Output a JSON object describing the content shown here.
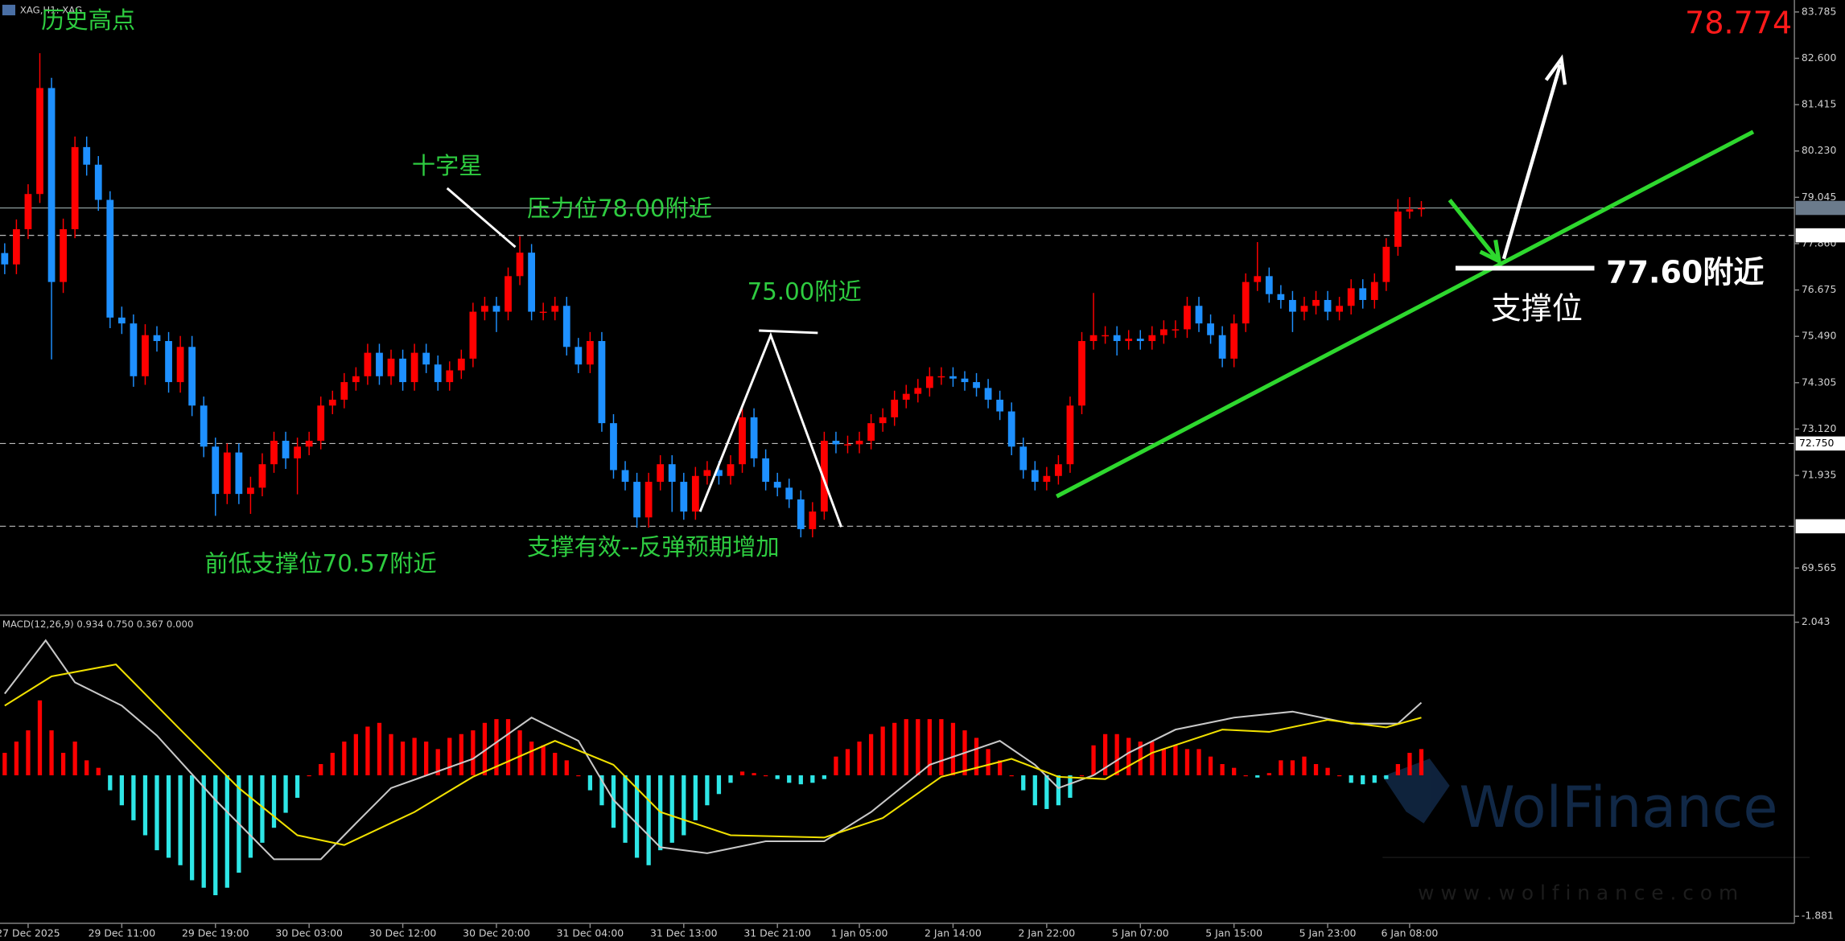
{
  "chart_data": [
    {
      "type": "candlestick",
      "title": "XAG,H1: XAG",
      "current_price": 78.774,
      "up_color": "#ff0000",
      "down_color": "#1e90ff",
      "open": [
        77.62,
        77.33,
        78.23,
        79.13,
        81.84,
        76.88,
        78.23,
        80.33,
        79.88,
        78.98,
        75.97,
        75.82,
        74.47,
        75.52,
        75.37,
        74.32,
        75.22,
        73.72,
        72.67,
        71.46,
        72.52,
        71.46,
        71.62,
        72.22,
        72.82,
        72.37,
        72.67,
        72.82,
        73.72,
        73.87,
        74.32,
        74.47,
        75.07,
        74.47,
        74.92,
        74.32,
        75.07,
        74.77,
        74.32,
        74.62,
        74.92,
        76.12,
        76.27,
        76.12,
        77.03,
        77.63,
        76.12,
        76.12,
        76.27,
        75.22,
        74.77,
        75.37,
        73.27,
        72.07,
        71.77,
        70.86,
        71.77,
        72.22,
        71.77,
        71.01,
        71.92,
        72.07,
        71.92,
        72.22,
        73.42,
        72.37,
        71.77,
        71.62,
        71.32,
        70.56,
        71.01,
        72.82,
        72.73,
        72.73,
        72.82,
        73.27,
        73.42,
        73.87,
        74.02,
        74.17,
        74.47,
        74.47,
        74.41,
        74.32,
        74.17,
        73.87,
        73.57,
        72.67,
        72.07,
        71.77,
        71.92,
        72.22,
        73.72,
        75.37,
        75.52,
        75.52,
        75.37,
        75.43,
        75.37,
        75.52,
        75.67,
        75.67,
        76.27,
        75.82,
        75.52,
        74.92,
        75.82,
        76.88,
        77.03,
        76.57,
        76.42,
        76.12,
        76.27,
        76.42,
        76.12,
        76.27,
        76.72,
        76.42,
        76.88,
        77.78,
        78.68,
        78.74
      ],
      "high": [
        77.87,
        78.48,
        79.38,
        82.73,
        82.1,
        78.5,
        80.6,
        80.6,
        80.1,
        79.2,
        76.25,
        76.05,
        75.8,
        75.75,
        75.6,
        75.5,
        75.5,
        73.95,
        72.9,
        72.75,
        72.75,
        71.9,
        72.5,
        73.05,
        73.05,
        72.9,
        73.05,
        73.95,
        74.1,
        74.55,
        74.7,
        75.3,
        75.3,
        75.15,
        75.15,
        75.3,
        75.3,
        75.0,
        74.85,
        75.15,
        76.35,
        76.5,
        76.5,
        77.25,
        78.05,
        77.85,
        76.35,
        76.5,
        76.5,
        75.45,
        75.6,
        75.6,
        73.5,
        72.3,
        72.0,
        72.0,
        72.45,
        72.45,
        72.0,
        72.15,
        72.3,
        72.3,
        72.45,
        73.65,
        73.65,
        72.6,
        72.0,
        71.85,
        71.55,
        71.25,
        73.05,
        73.05,
        72.95,
        73.05,
        73.5,
        73.65,
        74.1,
        74.25,
        74.4,
        74.7,
        74.7,
        74.7,
        74.6,
        74.55,
        74.4,
        74.1,
        73.8,
        72.9,
        72.3,
        72.15,
        72.45,
        73.95,
        75.6,
        76.6,
        75.75,
        75.75,
        75.65,
        75.65,
        75.75,
        75.9,
        75.9,
        76.5,
        76.5,
        76.05,
        75.75,
        76.05,
        77.1,
        77.9,
        77.25,
        76.8,
        76.65,
        76.5,
        76.65,
        76.65,
        76.5,
        76.95,
        76.95,
        77.1,
        78.0,
        79.0,
        79.05,
        78.95
      ],
      "low": [
        77.08,
        77.08,
        77.98,
        78.9,
        74.9,
        76.6,
        78.0,
        79.6,
        78.7,
        75.7,
        75.55,
        74.2,
        74.25,
        75.1,
        74.05,
        74.05,
        73.45,
        72.4,
        70.9,
        71.2,
        71.2,
        70.95,
        71.4,
        72.0,
        72.1,
        71.45,
        72.45,
        72.6,
        73.5,
        73.65,
        74.1,
        74.25,
        74.25,
        74.25,
        74.1,
        74.1,
        74.55,
        74.1,
        74.1,
        74.4,
        74.7,
        75.9,
        75.6,
        75.9,
        76.8,
        75.9,
        75.9,
        75.9,
        75.0,
        74.55,
        74.55,
        73.05,
        71.85,
        71.55,
        70.6,
        70.6,
        71.55,
        71.0,
        70.8,
        70.8,
        71.7,
        71.7,
        71.7,
        72.0,
        72.15,
        71.55,
        71.4,
        71.1,
        70.35,
        70.35,
        70.8,
        72.5,
        72.5,
        72.5,
        72.6,
        73.05,
        73.2,
        73.65,
        73.8,
        73.95,
        74.25,
        74.2,
        74.1,
        73.95,
        73.65,
        73.35,
        72.45,
        71.85,
        71.55,
        71.55,
        71.7,
        72.0,
        73.5,
        75.15,
        75.3,
        75.0,
        75.15,
        75.15,
        75.15,
        75.3,
        75.45,
        75.45,
        75.6,
        75.3,
        74.7,
        74.7,
        75.6,
        76.65,
        76.35,
        76.2,
        75.6,
        75.9,
        76.05,
        75.9,
        75.9,
        76.05,
        76.2,
        76.2,
        76.65,
        77.55,
        78.5,
        78.55
      ],
      "close": [
        77.33,
        78.23,
        79.13,
        81.84,
        76.88,
        78.23,
        80.33,
        79.88,
        78.98,
        75.97,
        75.82,
        74.47,
        75.52,
        75.37,
        74.32,
        75.22,
        73.72,
        72.67,
        71.46,
        72.52,
        71.46,
        71.62,
        72.22,
        72.82,
        72.37,
        72.67,
        72.82,
        73.72,
        73.87,
        74.32,
        74.47,
        75.07,
        74.47,
        74.92,
        74.32,
        75.07,
        74.77,
        74.32,
        74.62,
        74.92,
        76.12,
        76.27,
        76.12,
        77.03,
        77.63,
        76.12,
        76.12,
        76.27,
        75.22,
        74.77,
        75.37,
        73.27,
        72.07,
        71.77,
        70.86,
        71.77,
        72.22,
        71.77,
        71.01,
        71.92,
        72.07,
        71.92,
        72.22,
        73.42,
        72.37,
        71.77,
        71.62,
        71.32,
        70.56,
        71.01,
        72.82,
        72.73,
        72.73,
        72.82,
        73.27,
        73.42,
        73.87,
        74.02,
        74.17,
        74.47,
        74.47,
        74.41,
        74.32,
        74.17,
        73.87,
        73.57,
        72.67,
        72.07,
        71.77,
        71.92,
        72.22,
        73.72,
        75.37,
        75.52,
        75.52,
        75.37,
        75.43,
        75.37,
        75.52,
        75.67,
        75.67,
        76.27,
        75.82,
        75.52,
        74.92,
        75.82,
        76.88,
        77.03,
        76.57,
        76.42,
        76.12,
        76.27,
        76.42,
        76.12,
        76.27,
        76.72,
        76.42,
        76.88,
        77.78,
        78.68,
        78.74,
        78.77
      ],
      "ylim": [
        68.39,
        84.09
      ],
      "yticks": [
        83.785,
        {
          "value": 82.6,
          "label": "82.600"
        },
        81.415,
        {
          "value": 80.23,
          "label": "80.230"
        },
        79.045,
        {
          "value": 77.86,
          "label": "77.860"
        },
        76.675,
        {
          "value": 75.49,
          "label": "75.490"
        },
        74.305,
        {
          "value": 73.12,
          "label": "73.120"
        },
        71.935,
        69.565
      ],
      "levels": [
        {
          "value": 78.774,
          "style": "solid"
        },
        {
          "value": 78.073,
          "style": "dashed"
        },
        {
          "value": 72.75,
          "label": "72.750",
          "style": "dashed"
        },
        {
          "value": 70.633,
          "style": "dashed"
        }
      ],
      "xticks": [
        {
          "value": 2,
          "label": "27 Dec 2025"
        },
        {
          "value": 10,
          "label": "29 Dec 11:00"
        },
        {
          "value": 18,
          "label": "29 Dec 19:00"
        },
        {
          "value": 26,
          "label": "30 Dec 03:00"
        },
        {
          "value": 34,
          "label": "30 Dec 12:00"
        },
        {
          "value": 42,
          "label": "30 Dec 20:00"
        },
        {
          "value": 50,
          "label": "31 Dec 04:00"
        },
        {
          "value": 58,
          "label": "31 Dec 13:00"
        },
        {
          "value": 66,
          "label": "31 Dec 21:00"
        },
        {
          "value": 73,
          "label": "1 Jan 05:00"
        },
        {
          "value": 81,
          "label": "2 Jan 14:00"
        },
        {
          "value": 89,
          "label": "2 Jan 22:00"
        },
        {
          "value": 97,
          "label": "5 Jan 07:00"
        },
        {
          "value": 105,
          "label": "5 Jan 15:00"
        },
        {
          "value": 113,
          "label": "5 Jan 23:00"
        },
        {
          "value": 120,
          "label": "6 Jan 08:00"
        }
      ],
      "annotations": [
        "历史高点",
        "十字星",
        "压力位78.00附近",
        "75.00附近",
        "前低支撑位70.57附近",
        "支撑有效--反弹预期增加",
        "77.60附近",
        "支撑位"
      ],
      "watermark": "WolFinance",
      "watermark_url": "w w w . w o l f i n a n c e . c o m"
    },
    {
      "type": "macd",
      "title": "MACD(12,26,9) 0.934 0.750 0.367 0.000",
      "positive_color": "#ff0000",
      "negative_color": "#2ee6e6",
      "histogram": [
        0.3,
        0.45,
        0.6,
        1.0,
        0.6,
        0.3,
        0.45,
        0.2,
        0.1,
        -0.2,
        -0.4,
        -0.6,
        -0.8,
        -1.0,
        -1.1,
        -1.2,
        -1.4,
        -1.5,
        -1.6,
        -1.5,
        -1.3,
        -1.1,
        -0.9,
        -0.7,
        -0.5,
        -0.3,
        0.0,
        0.15,
        0.3,
        0.45,
        0.55,
        0.65,
        0.7,
        0.55,
        0.45,
        0.5,
        0.45,
        0.35,
        0.5,
        0.55,
        0.6,
        0.7,
        0.75,
        0.75,
        0.6,
        0.45,
        0.4,
        0.3,
        0.2,
        0.0,
        -0.2,
        -0.4,
        -0.7,
        -0.9,
        -1.1,
        -1.2,
        -1.0,
        -0.9,
        -0.8,
        -0.6,
        -0.4,
        -0.25,
        -0.1,
        0.05,
        0.03,
        0.0,
        -0.05,
        -0.1,
        -0.12,
        -0.1,
        -0.05,
        0.25,
        0.35,
        0.45,
        0.55,
        0.65,
        0.7,
        0.75,
        0.75,
        0.75,
        0.75,
        0.7,
        0.6,
        0.5,
        0.35,
        0.2,
        0.0,
        -0.2,
        -0.4,
        -0.45,
        -0.4,
        -0.3,
        0.0,
        0.4,
        0.55,
        0.55,
        0.5,
        0.45,
        0.45,
        0.35,
        0.4,
        0.35,
        0.35,
        0.25,
        0.15,
        0.1,
        0.0,
        -0.03,
        0.03,
        0.2,
        0.2,
        0.25,
        0.15,
        0.1,
        0.0,
        -0.1,
        -0.12,
        -0.1,
        -0.05,
        0.15,
        0.3,
        0.35
      ],
      "lines": [
        {
          "color": "#c8c8c8",
          "x": [
            0,
            3.5,
            6,
            10,
            13,
            18,
            23,
            27,
            30,
            33,
            40,
            45,
            49,
            52,
            56,
            60,
            65,
            70,
            74,
            79,
            85,
            88,
            90,
            93,
            96,
            100,
            105,
            110,
            115,
            119,
            121
          ],
          "values": [
            1.09,
            1.8,
            1.24,
            0.93,
            0.53,
            -0.33,
            -1.12,
            -1.12,
            -0.64,
            -0.17,
            0.22,
            0.77,
            0.46,
            -0.33,
            -0.96,
            -1.04,
            -0.88,
            -0.88,
            -0.49,
            0.14,
            0.46,
            0.14,
            -0.17,
            0.0,
            0.3,
            0.61,
            0.77,
            0.85,
            0.69,
            0.69,
            0.97
          ]
        },
        {
          "color": "#f0e000",
          "x": [
            0,
            4,
            9.5,
            15,
            20,
            25,
            29,
            35,
            40,
            47,
            52,
            56,
            62,
            70,
            75,
            80,
            86,
            90,
            94,
            98,
            104,
            108,
            113,
            118,
            121
          ],
          "values": [
            0.93,
            1.32,
            1.48,
            0.61,
            -0.17,
            -0.8,
            -0.93,
            -0.49,
            -0.02,
            0.46,
            0.14,
            -0.49,
            -0.8,
            -0.83,
            -0.57,
            -0.02,
            0.22,
            -0.02,
            -0.05,
            0.3,
            0.61,
            0.58,
            0.74,
            0.64,
            0.77
          ]
        }
      ],
      "ylim": [
        -1.881,
        2.043
      ],
      "yticks": [
        2.043,
        -1.881
      ]
    }
  ]
}
